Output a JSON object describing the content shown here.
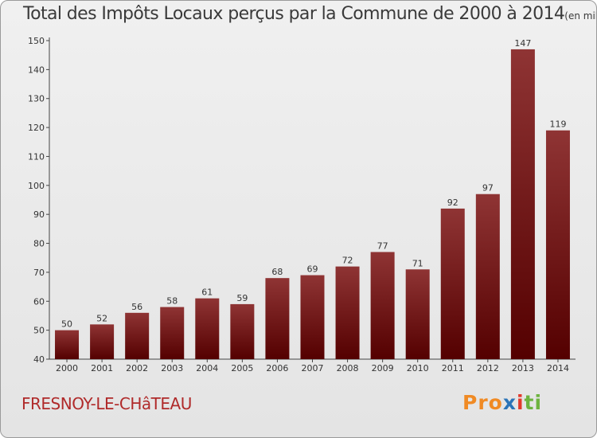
{
  "header": {
    "title": "Total des Impôts Locaux perçus par la Commune de 2000 à 2014",
    "unit": "(en milliers d'€)"
  },
  "footer": {
    "commune": "FRESNOY-LE-CHâTEAU",
    "logo_parts": [
      "Pro",
      "x",
      "i",
      "ti"
    ]
  },
  "colors": {
    "bar_top": "#8f3434",
    "bar_bottom": "#540000",
    "text": "#333333",
    "commune": "#b02a2a"
  },
  "chart_data": {
    "type": "bar",
    "title": "Total des Impôts Locaux perçus par la Commune de 2000 à 2014",
    "xlabel": "",
    "ylabel": "",
    "categories": [
      "2000",
      "2001",
      "2002",
      "2003",
      "2004",
      "2005",
      "2006",
      "2007",
      "2008",
      "2009",
      "2010",
      "2011",
      "2012",
      "2013",
      "2014"
    ],
    "values": [
      50,
      52,
      56,
      58,
      61,
      59,
      68,
      69,
      72,
      77,
      71,
      92,
      97,
      147,
      119
    ],
    "ylim": [
      40,
      150
    ],
    "yticks": [
      40,
      50,
      60,
      70,
      80,
      90,
      100,
      110,
      120,
      130,
      140,
      150
    ],
    "grid": false
  }
}
